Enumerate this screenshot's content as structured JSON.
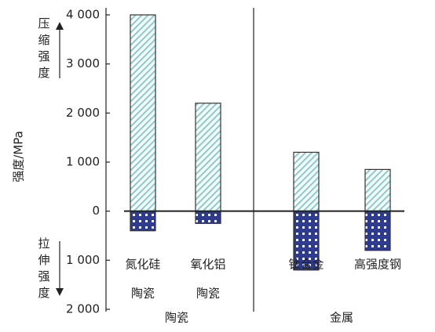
{
  "chart_data": {
    "type": "bar",
    "ylabel": "强度/MPa",
    "annotations": [
      "压缩强度",
      "拉伸强度"
    ],
    "categories": [
      [
        "氮化硅",
        "陶瓷"
      ],
      [
        "氧化铝",
        "陶瓷"
      ],
      [
        "钛合金"
      ],
      [
        "高强度钢"
      ]
    ],
    "groups": [
      {
        "name": "陶瓷",
        "members": 2
      },
      {
        "name": "金属",
        "members": 2
      }
    ],
    "series": [
      {
        "color": "#8fcfcc",
        "values": [
          4000,
          2200,
          1200,
          850
        ]
      },
      {
        "color": "#2e3a8c",
        "values": [
          -400,
          -250,
          -1200,
          -800
        ]
      }
    ],
    "ylim": [
      -2000,
      4000
    ],
    "yticks": [
      {
        "value": -2000,
        "label": "2 000"
      },
      {
        "value": -1000,
        "label": "1 000"
      },
      0,
      {
        "value": 1000,
        "label": "1 000"
      },
      {
        "value": 2000,
        "label": "2 000"
      },
      {
        "value": 3000,
        "label": "3 000"
      },
      {
        "value": 4000,
        "label": "4 000"
      }
    ]
  }
}
